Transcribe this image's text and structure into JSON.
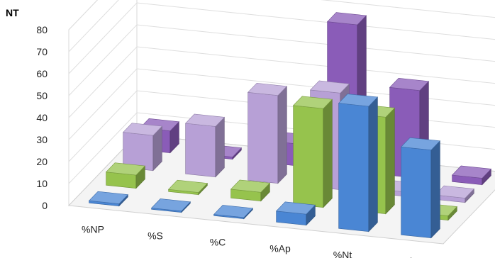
{
  "chart_data": {
    "type": "bar",
    "title": "NT",
    "categories": [
      "%NP",
      "%S",
      "%C",
      "%Ap",
      "%Nt",
      "%Sb"
    ],
    "yticks": [
      "0",
      "10",
      "20",
      "30",
      "40",
      "50",
      "60",
      "70",
      "80"
    ],
    "ylim": [
      0,
      80
    ],
    "series": [
      {
        "values": [
          1,
          0,
          0,
          5,
          57,
          40
        ],
        "color": "#4a86d4"
      },
      {
        "values": [
          6,
          1,
          4,
          45,
          44,
          2
        ],
        "color": "#96c34d"
      },
      {
        "values": [
          16,
          23,
          40,
          44,
          2,
          2
        ],
        "color": "#b7a0d6"
      },
      {
        "values": [
          10,
          1,
          10,
          67,
          40,
          3
        ],
        "color": "#8a5cb8"
      }
    ],
    "grid": true,
    "legend": "none"
  }
}
